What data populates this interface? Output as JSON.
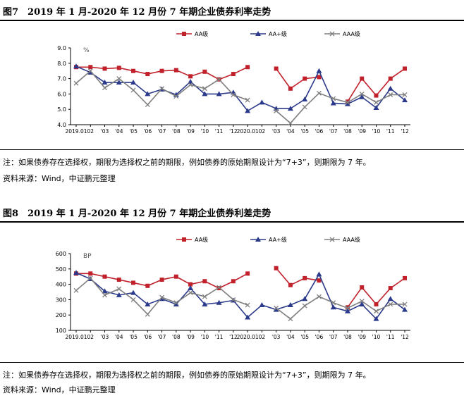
{
  "figures": [
    {
      "title": "图7　2019 年 1 月-2020 年 12 月份 7 年期企业债券利率走势",
      "note": "注：如果债券存在选择权，期限为选择权之前的期限，例如债券的原始期限设计为“7+3”，则期限为 7 年。",
      "source": "资料来源：Wind，中证鹏元整理"
    },
    {
      "title": "图8　2019 年 1 月-2020 年 12 月份 7 年期企业债券利差走势",
      "note": "注：如果债券存在选择权，期限为选择权之前的期限，例如债券的原始期限设计为“7+3”，则期限为 7 年。",
      "source": "资料来源：Wind，中证鹏元整理"
    }
  ],
  "chart_data": [
    {
      "type": "line",
      "title": "",
      "unit_label": "%",
      "ylim": [
        4.0,
        9.0
      ],
      "yticks": [
        "4.0",
        "5.0",
        "6.0",
        "7.0",
        "8.0",
        "9.0"
      ],
      "categories": [
        "2019.01",
        "02",
        "03",
        "04",
        "05",
        "06",
        "07",
        "08",
        "09",
        "10",
        "11",
        "12",
        "2020.01",
        "02",
        "03",
        "04",
        "05",
        "06",
        "07",
        "08",
        "09",
        "10",
        "11",
        "12"
      ],
      "xtick_labels": [
        "2019.01",
        "02",
        "'03",
        "'04",
        "'05",
        "'06",
        "'07",
        "'08",
        "'09",
        "'10",
        "'11",
        "'12",
        "2020.01",
        "02",
        "'03",
        "'04",
        "'05",
        "'06",
        "'07",
        "'08",
        "'09",
        "'10",
        "'11",
        "'12"
      ],
      "legend_position": "top-center",
      "series": [
        {
          "name": "AA级",
          "color": "#C0212B",
          "marker": "square",
          "values": [
            7.75,
            7.75,
            7.65,
            7.7,
            7.5,
            7.3,
            7.5,
            7.55,
            7.15,
            7.45,
            6.95,
            7.3,
            7.75,
            null,
            7.65,
            6.35,
            7.0,
            7.1,
            null,
            5.5,
            7.0,
            5.9,
            7.0,
            7.65
          ]
        },
        {
          "name": "AA+级",
          "color": "#2B3A8A",
          "marker": "triangle",
          "values": [
            7.8,
            7.4,
            6.75,
            6.75,
            6.75,
            6.0,
            6.3,
            5.95,
            6.8,
            6.0,
            6.0,
            6.1,
            4.9,
            5.45,
            5.05,
            5.05,
            5.65,
            7.5,
            5.4,
            5.35,
            5.8,
            5.1,
            6.35,
            5.6
          ]
        },
        {
          "name": "AAA级",
          "color": "#7F7F7F",
          "marker": "x",
          "values": [
            6.7,
            7.5,
            6.4,
            7.0,
            6.25,
            5.3,
            6.35,
            5.85,
            6.6,
            6.35,
            6.95,
            5.95,
            5.6,
            null,
            4.9,
            4.1,
            5.15,
            6.05,
            5.7,
            5.45,
            6.0,
            5.45,
            5.95,
            5.95
          ]
        }
      ]
    },
    {
      "type": "line",
      "title": "",
      "unit_label": "BP",
      "ylim": [
        100,
        600
      ],
      "yticks": [
        "100",
        "200",
        "300",
        "400",
        "500",
        "600"
      ],
      "categories": [
        "2019.01",
        "02",
        "03",
        "04",
        "05",
        "06",
        "07",
        "08",
        "09",
        "10",
        "11",
        "12",
        "2020.01",
        "02",
        "03",
        "04",
        "05",
        "06",
        "07",
        "08",
        "09",
        "10",
        "11",
        "12"
      ],
      "xtick_labels": [
        "2019.01",
        "02",
        "'03",
        "'04",
        "'05",
        "'06",
        "'07",
        "'08",
        "'09",
        "'10",
        "'11",
        "'12",
        "2020.01",
        "02",
        "'03",
        "'04",
        "'05",
        "'06",
        "'07",
        "'08",
        "'09",
        "'10",
        "'11",
        "'12"
      ],
      "legend_position": "top-center",
      "series": [
        {
          "name": "AA级",
          "color": "#C0212B",
          "marker": "square",
          "values": [
            470,
            470,
            450,
            430,
            410,
            390,
            430,
            450,
            400,
            420,
            375,
            420,
            470,
            null,
            505,
            395,
            440,
            425,
            null,
            250,
            380,
            270,
            375,
            440
          ]
        },
        {
          "name": "AA+级",
          "color": "#2B3A8A",
          "marker": "triangle",
          "values": [
            475,
            435,
            355,
            330,
            345,
            270,
            305,
            270,
            375,
            270,
            280,
            295,
            185,
            265,
            235,
            265,
            305,
            465,
            250,
            225,
            270,
            175,
            305,
            235
          ]
        },
        {
          "name": "AAA级",
          "color": "#7F7F7F",
          "marker": "x",
          "values": [
            360,
            440,
            330,
            370,
            300,
            205,
            315,
            280,
            345,
            320,
            380,
            300,
            265,
            null,
            245,
            175,
            260,
            320,
            280,
            245,
            290,
            225,
            270,
            270
          ]
        }
      ]
    }
  ]
}
